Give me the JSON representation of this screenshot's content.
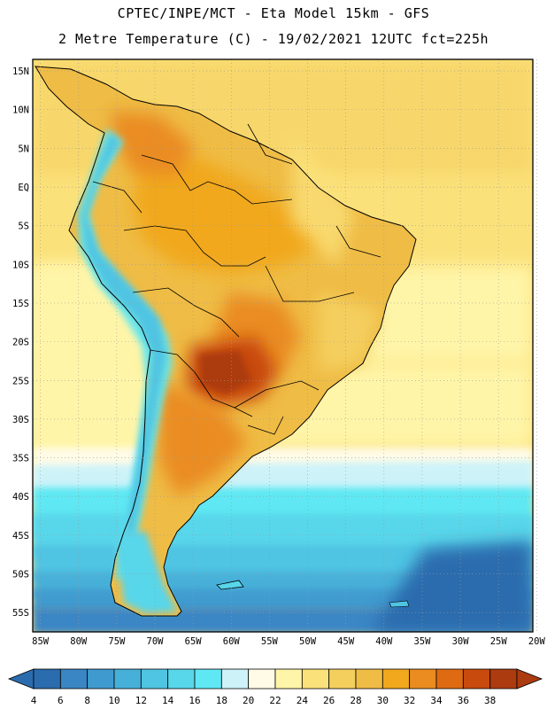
{
  "header": {
    "line1": "CPTEC/INPE/MCT -  Eta Model 15km - GFS",
    "line2": "2 Metre Temperature (C) - 19/02/2021 12UTC fct=225h"
  },
  "map": {
    "lat_labels": [
      "15N",
      "10N",
      "5N",
      "EQ",
      "5S",
      "10S",
      "15S",
      "20S",
      "25S",
      "30S",
      "35S",
      "40S",
      "45S",
      "50S",
      "55S"
    ],
    "lon_labels": [
      "85W",
      "80W",
      "75W",
      "70W",
      "65W",
      "60W",
      "55W",
      "50W",
      "45W",
      "40W",
      "35W",
      "30W",
      "25W",
      "20W"
    ],
    "lat_range": [
      -57.5,
      16.5
    ],
    "lon_range": [
      -86,
      -20.5
    ]
  },
  "colorbar": {
    "values": [
      "4",
      "6",
      "8",
      "10",
      "12",
      "14",
      "16",
      "18",
      "20",
      "22",
      "24",
      "26",
      "28",
      "30",
      "32",
      "34",
      "36",
      "38"
    ],
    "colors": [
      "#2b6cae",
      "#3a86c4",
      "#3f9bcf",
      "#46b0d9",
      "#4fc4e3",
      "#58d6ea",
      "#5fe8f3",
      "#cdf3f9",
      "#fffbe6",
      "#fff5a8",
      "#fbe17a",
      "#f4cf5e",
      "#efbc45",
      "#f1a81c",
      "#ea8c20",
      "#de6a12",
      "#c84a0c",
      "#ac3b10"
    ],
    "low_color": "#2b6cae",
    "high_color": "#ac3b10"
  }
}
